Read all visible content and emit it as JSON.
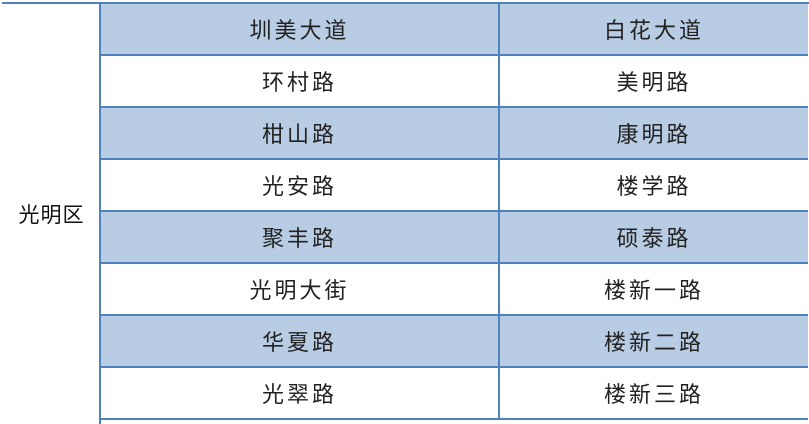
{
  "district": "光明区",
  "colors": {
    "border": "#4f81bd",
    "shade": "#b8cce4"
  },
  "rows": [
    {
      "a": "圳美大道",
      "b": "白花大道",
      "shaded": true
    },
    {
      "a": "环村路",
      "b": "美明路",
      "shaded": false
    },
    {
      "a": "柑山路",
      "b": "康明路",
      "shaded": true
    },
    {
      "a": "光安路",
      "b": "楼学路",
      "shaded": false
    },
    {
      "a": "聚丰路",
      "b": "硕泰路",
      "shaded": true
    },
    {
      "a": "光明大街",
      "b": "楼新一路",
      "shaded": false
    },
    {
      "a": "华夏路",
      "b": "楼新二路",
      "shaded": true
    },
    {
      "a": "光翠路",
      "b": "楼新三路",
      "shaded": false
    }
  ]
}
